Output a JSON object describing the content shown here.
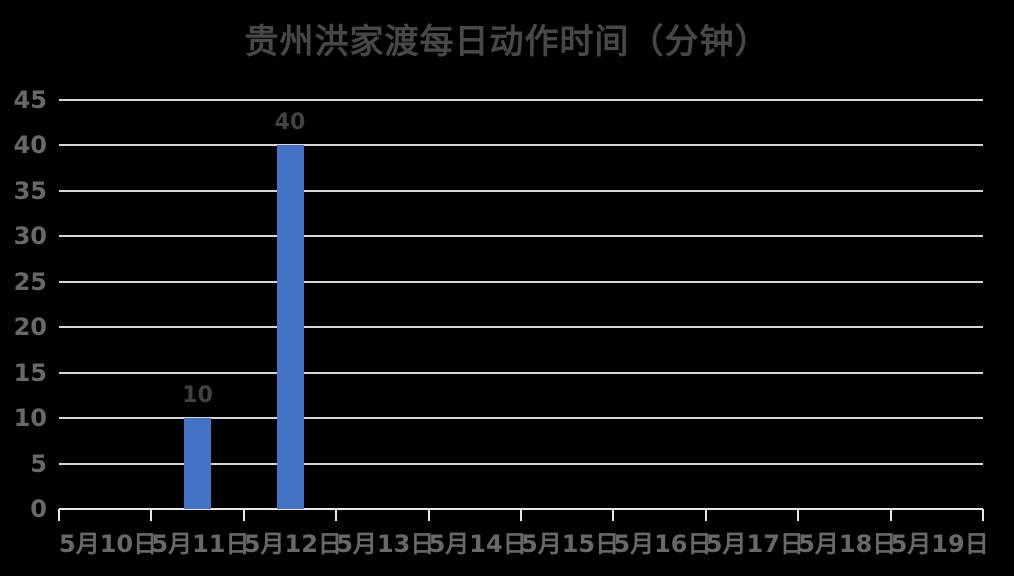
{
  "chart_data": {
    "type": "bar",
    "title": "贵州洪家渡每日动作时间（分钟）",
    "categories": [
      "5月10日",
      "5月11日",
      "5月12日",
      "5月13日",
      "5月14日",
      "5月15日",
      "5月16日",
      "5月17日",
      "5月18日",
      "5月19日"
    ],
    "values": [
      0,
      10,
      40,
      0,
      0,
      0,
      0,
      0,
      0,
      0
    ],
    "data_labels_shown": [
      10,
      40
    ],
    "xlabel": "",
    "ylabel": "",
    "ylim": [
      0,
      45
    ],
    "ytick_step": 5,
    "ytick_labels": [
      "0",
      "5",
      "10",
      "15",
      "20",
      "25",
      "30",
      "35",
      "40",
      "45"
    ],
    "grid": true,
    "legend": false,
    "colors": {
      "background": "#000000",
      "bar": "#4472c4",
      "gridline": "#d6d6d6",
      "axis_line": "#e8e8e8",
      "axis_labels": "#686868",
      "data_labels": "#424242",
      "title": "#474747"
    }
  }
}
